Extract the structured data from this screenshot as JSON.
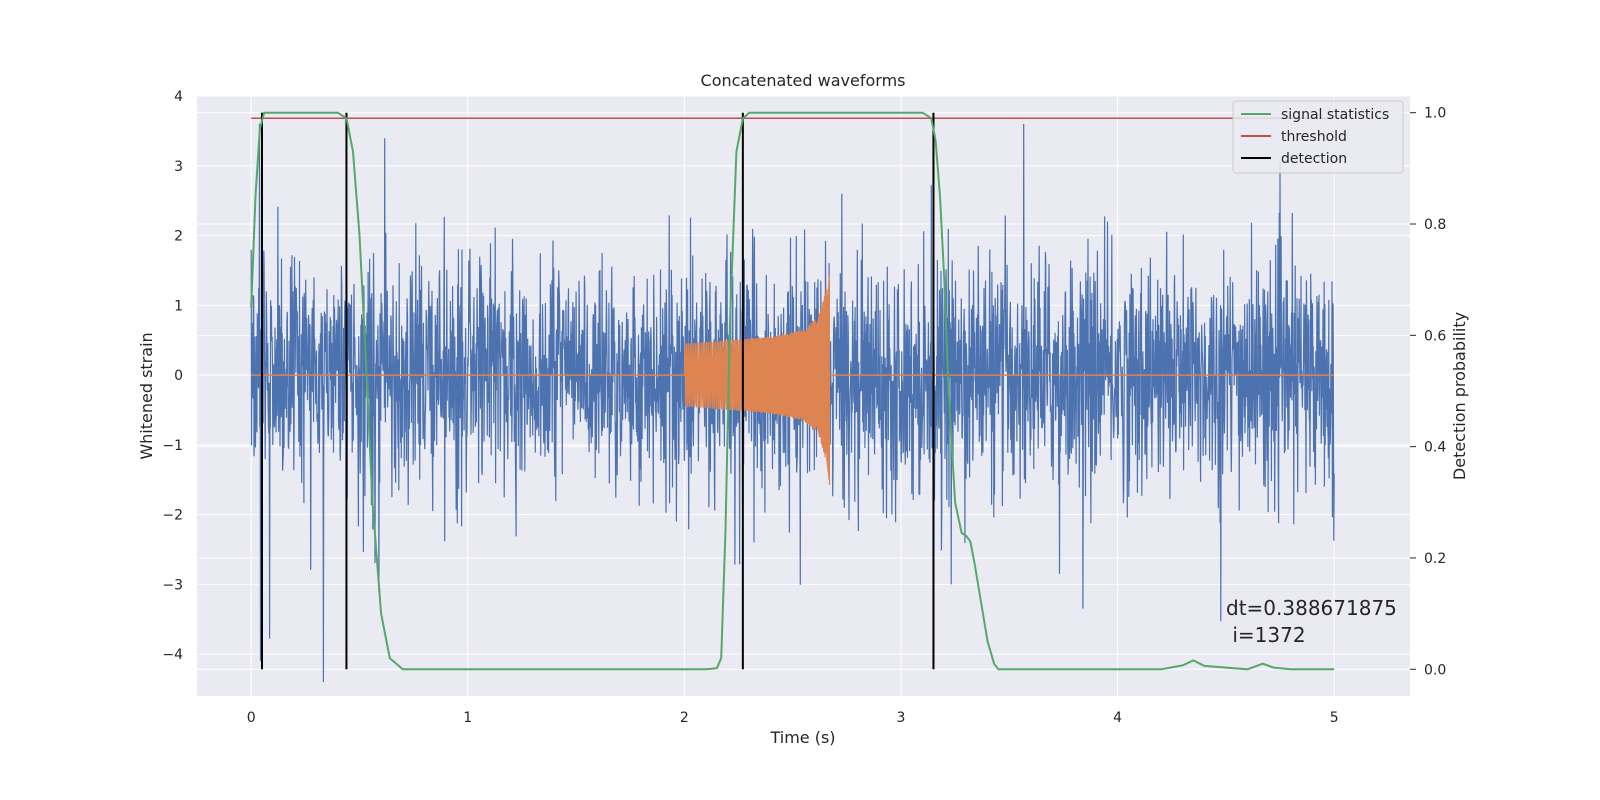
{
  "chart_data": {
    "type": "line",
    "title": "Concatenated waveforms",
    "xlabel": "Time (s)",
    "ylabel": "Whitened strain",
    "y2label": "Detection probability",
    "xlim": [
      -0.25,
      5.35
    ],
    "ylim": [
      -4.6,
      4.0
    ],
    "y2lim": [
      -0.048,
      1.03
    ],
    "xticks": [
      0,
      1,
      2,
      3,
      4,
      5
    ],
    "xtick_labels": [
      "0",
      "1",
      "2",
      "3",
      "4",
      "5"
    ],
    "yticks": [
      -4,
      -3,
      -2,
      -1,
      0,
      1,
      2,
      3,
      4
    ],
    "ytick_labels": [
      "−4",
      "−3",
      "−2",
      "−1",
      "0",
      "1",
      "2",
      "3",
      "4"
    ],
    "y2ticks": [
      0.0,
      0.2,
      0.4,
      0.6,
      0.8,
      1.0
    ],
    "y2tick_labels": [
      "0.0",
      "0.2",
      "0.4",
      "0.6",
      "0.8",
      "1.0"
    ],
    "grid": true,
    "legend_placement": "top-right",
    "annotation": [
      "dt=0.388671875",
      " i=1372"
    ],
    "colors": {
      "plot_bg": "#eaeaf2",
      "grid": "#ffffff",
      "strain": "#4c72b0",
      "injected": "#dd8452",
      "signal_statistics": "#55a868",
      "threshold": "#c44e52",
      "detection": "#000000"
    },
    "series": [
      {
        "name": "signal statistics",
        "axis": "right",
        "x": [
          0.0,
          0.02,
          0.04,
          0.06,
          0.08,
          0.1,
          0.2,
          0.3,
          0.4,
          0.44,
          0.47,
          0.5,
          0.53,
          0.56,
          0.6,
          0.64,
          0.7,
          1.0,
          1.5,
          2.0,
          2.1,
          2.15,
          2.17,
          2.19,
          2.21,
          2.24,
          2.27,
          2.3,
          2.35,
          2.5,
          2.8,
          3.1,
          3.14,
          3.16,
          3.18,
          3.2,
          3.22,
          3.25,
          3.28,
          3.3,
          3.32,
          3.34,
          3.37,
          3.4,
          3.43,
          3.45,
          3.5,
          3.8,
          4.2,
          4.3,
          4.35,
          4.4,
          4.6,
          4.67,
          4.72,
          4.8,
          5.0
        ],
        "values": [
          0.65,
          0.85,
          0.97,
          1.0,
          1.0,
          1.0,
          1.0,
          1.0,
          1.0,
          0.99,
          0.93,
          0.78,
          0.55,
          0.3,
          0.1,
          0.02,
          0.0,
          0.0,
          0.0,
          0.0,
          0.0,
          0.002,
          0.02,
          0.25,
          0.62,
          0.93,
          0.99,
          1.0,
          1.0,
          1.0,
          1.0,
          1.0,
          0.99,
          0.95,
          0.85,
          0.7,
          0.5,
          0.3,
          0.245,
          0.24,
          0.23,
          0.19,
          0.12,
          0.05,
          0.01,
          0.0,
          0.0,
          0.0,
          0.0,
          0.007,
          0.016,
          0.006,
          0.0,
          0.01,
          0.003,
          0.0,
          0.0
        ]
      },
      {
        "name": "threshold",
        "axis": "right",
        "x": [
          0.0,
          5.0
        ],
        "values": [
          0.99,
          0.99
        ]
      },
      {
        "name": "detection",
        "axis": "right",
        "type": "vlines",
        "x": [
          0.05,
          0.44,
          2.27,
          3.15
        ],
        "range": [
          0.0,
          1.0
        ]
      },
      {
        "name": "",
        "axis": "left",
        "type": "noise",
        "x_range": [
          0.0,
          5.0
        ],
        "typical_amplitude": 1.0,
        "max_excursion": [
          -4.4,
          3.6
        ]
      },
      {
        "name": "",
        "axis": "left",
        "type": "chirp",
        "x_range": [
          2.0,
          2.67
        ],
        "envelope": {
          "x": [
            2.0,
            2.2,
            2.4,
            2.55,
            2.62,
            2.66,
            2.67
          ],
          "values": [
            0.45,
            0.5,
            0.55,
            0.65,
            0.85,
            1.3,
            1.6
          ]
        }
      }
    ]
  }
}
